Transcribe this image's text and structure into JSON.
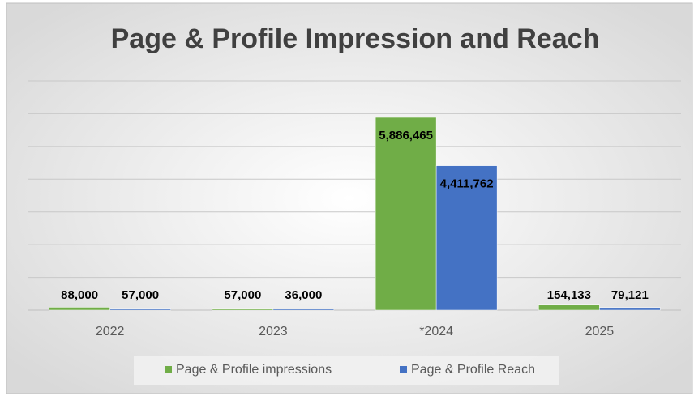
{
  "chart_data": {
    "type": "bar",
    "title": "Page & Profile Impression and Reach",
    "categories": [
      "2022",
      "2023",
      "*2024",
      "2025"
    ],
    "series": [
      {
        "name": "Page & Profile impressions",
        "color": "#70ad47",
        "values": [
          88000,
          57000,
          5886465,
          154133
        ],
        "value_labels": [
          "88,000",
          "57,000",
          "5,886,465",
          "154,133"
        ]
      },
      {
        "name": "Page & Profile Reach",
        "color": "#4472c4",
        "values": [
          57000,
          36000,
          4411762,
          79121
        ],
        "value_labels": [
          "57,000",
          "36,000",
          "4,411,762",
          "79,121"
        ]
      }
    ],
    "ylim": [
      0,
      7000000
    ],
    "yticks": [
      0,
      1000000,
      2000000,
      3000000,
      4000000,
      5000000,
      6000000,
      7000000
    ],
    "grid": true,
    "legend": "bottom"
  }
}
